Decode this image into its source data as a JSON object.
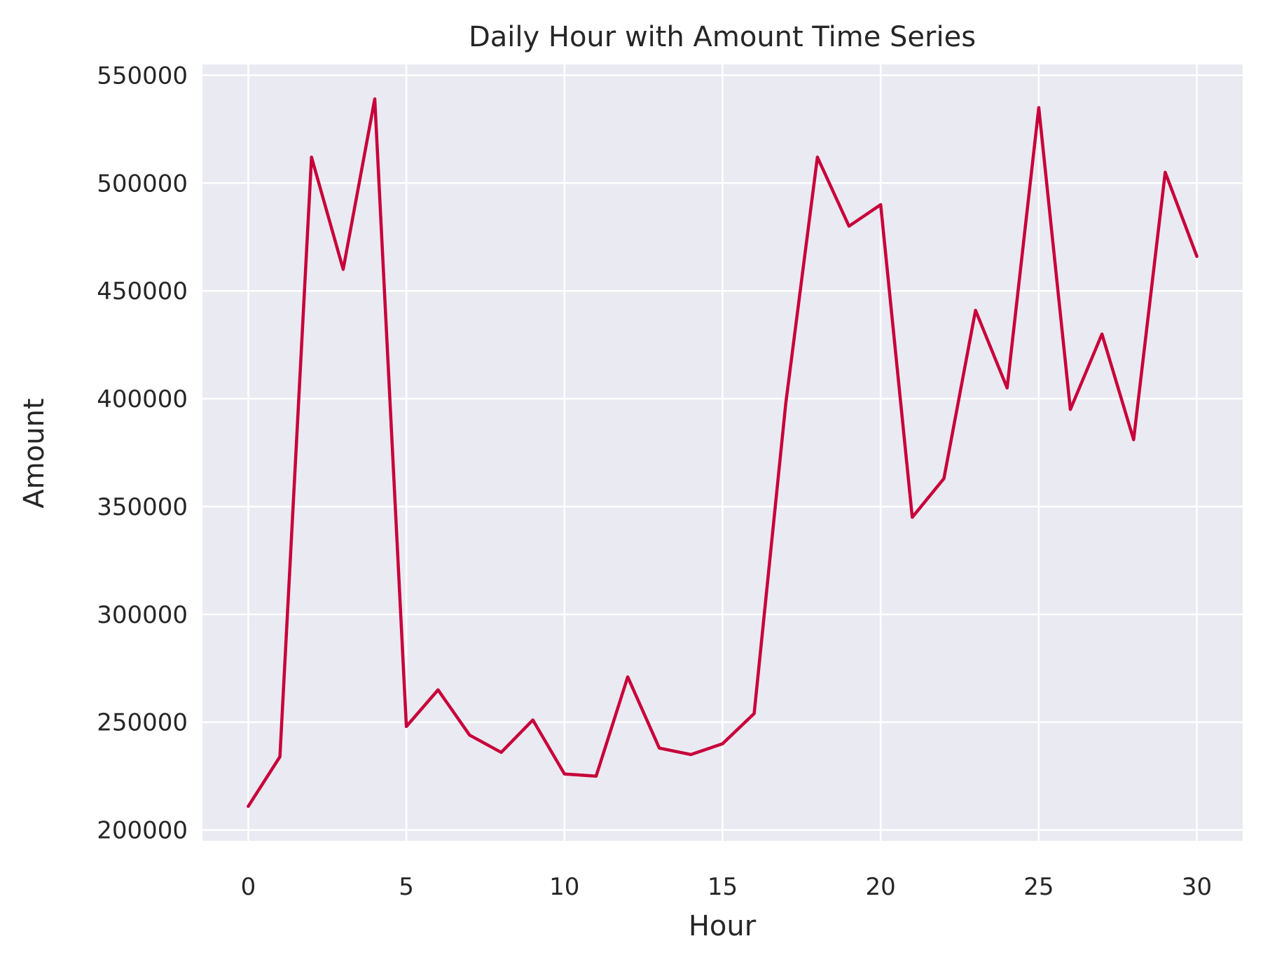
{
  "chart_data": {
    "type": "line",
    "title": "Daily Hour with Amount Time Series",
    "xlabel": "Hour",
    "ylabel": "Amount",
    "xlim": [
      -1.45,
      31.45
    ],
    "ylim": [
      195000,
      555000
    ],
    "x_ticks": [
      0,
      5,
      10,
      15,
      20,
      25,
      30
    ],
    "y_ticks": [
      200000,
      250000,
      300000,
      350000,
      400000,
      450000,
      500000,
      550000
    ],
    "grid": true,
    "series": [
      {
        "color": "#c8003a",
        "x": [
          0,
          1,
          2,
          3,
          4,
          5,
          6,
          7,
          8,
          9,
          10,
          11,
          12,
          13,
          14,
          15,
          16,
          17,
          18,
          19,
          20,
          21,
          22,
          23,
          24,
          25,
          26,
          27,
          28,
          29,
          30
        ],
        "y": [
          211000,
          234000,
          512000,
          460000,
          539000,
          248000,
          265000,
          244000,
          236000,
          251000,
          226000,
          225000,
          271000,
          238000,
          235000,
          240000,
          254000,
          398000,
          512000,
          480000,
          490000,
          345000,
          363000,
          441000,
          405000,
          535000,
          395000,
          430000,
          381000,
          505000,
          466000
        ]
      }
    ],
    "colors": {
      "plot_background": "#eaeaf2",
      "grid": "#ffffff",
      "text": "#262626",
      "line": "#c8003a"
    }
  }
}
